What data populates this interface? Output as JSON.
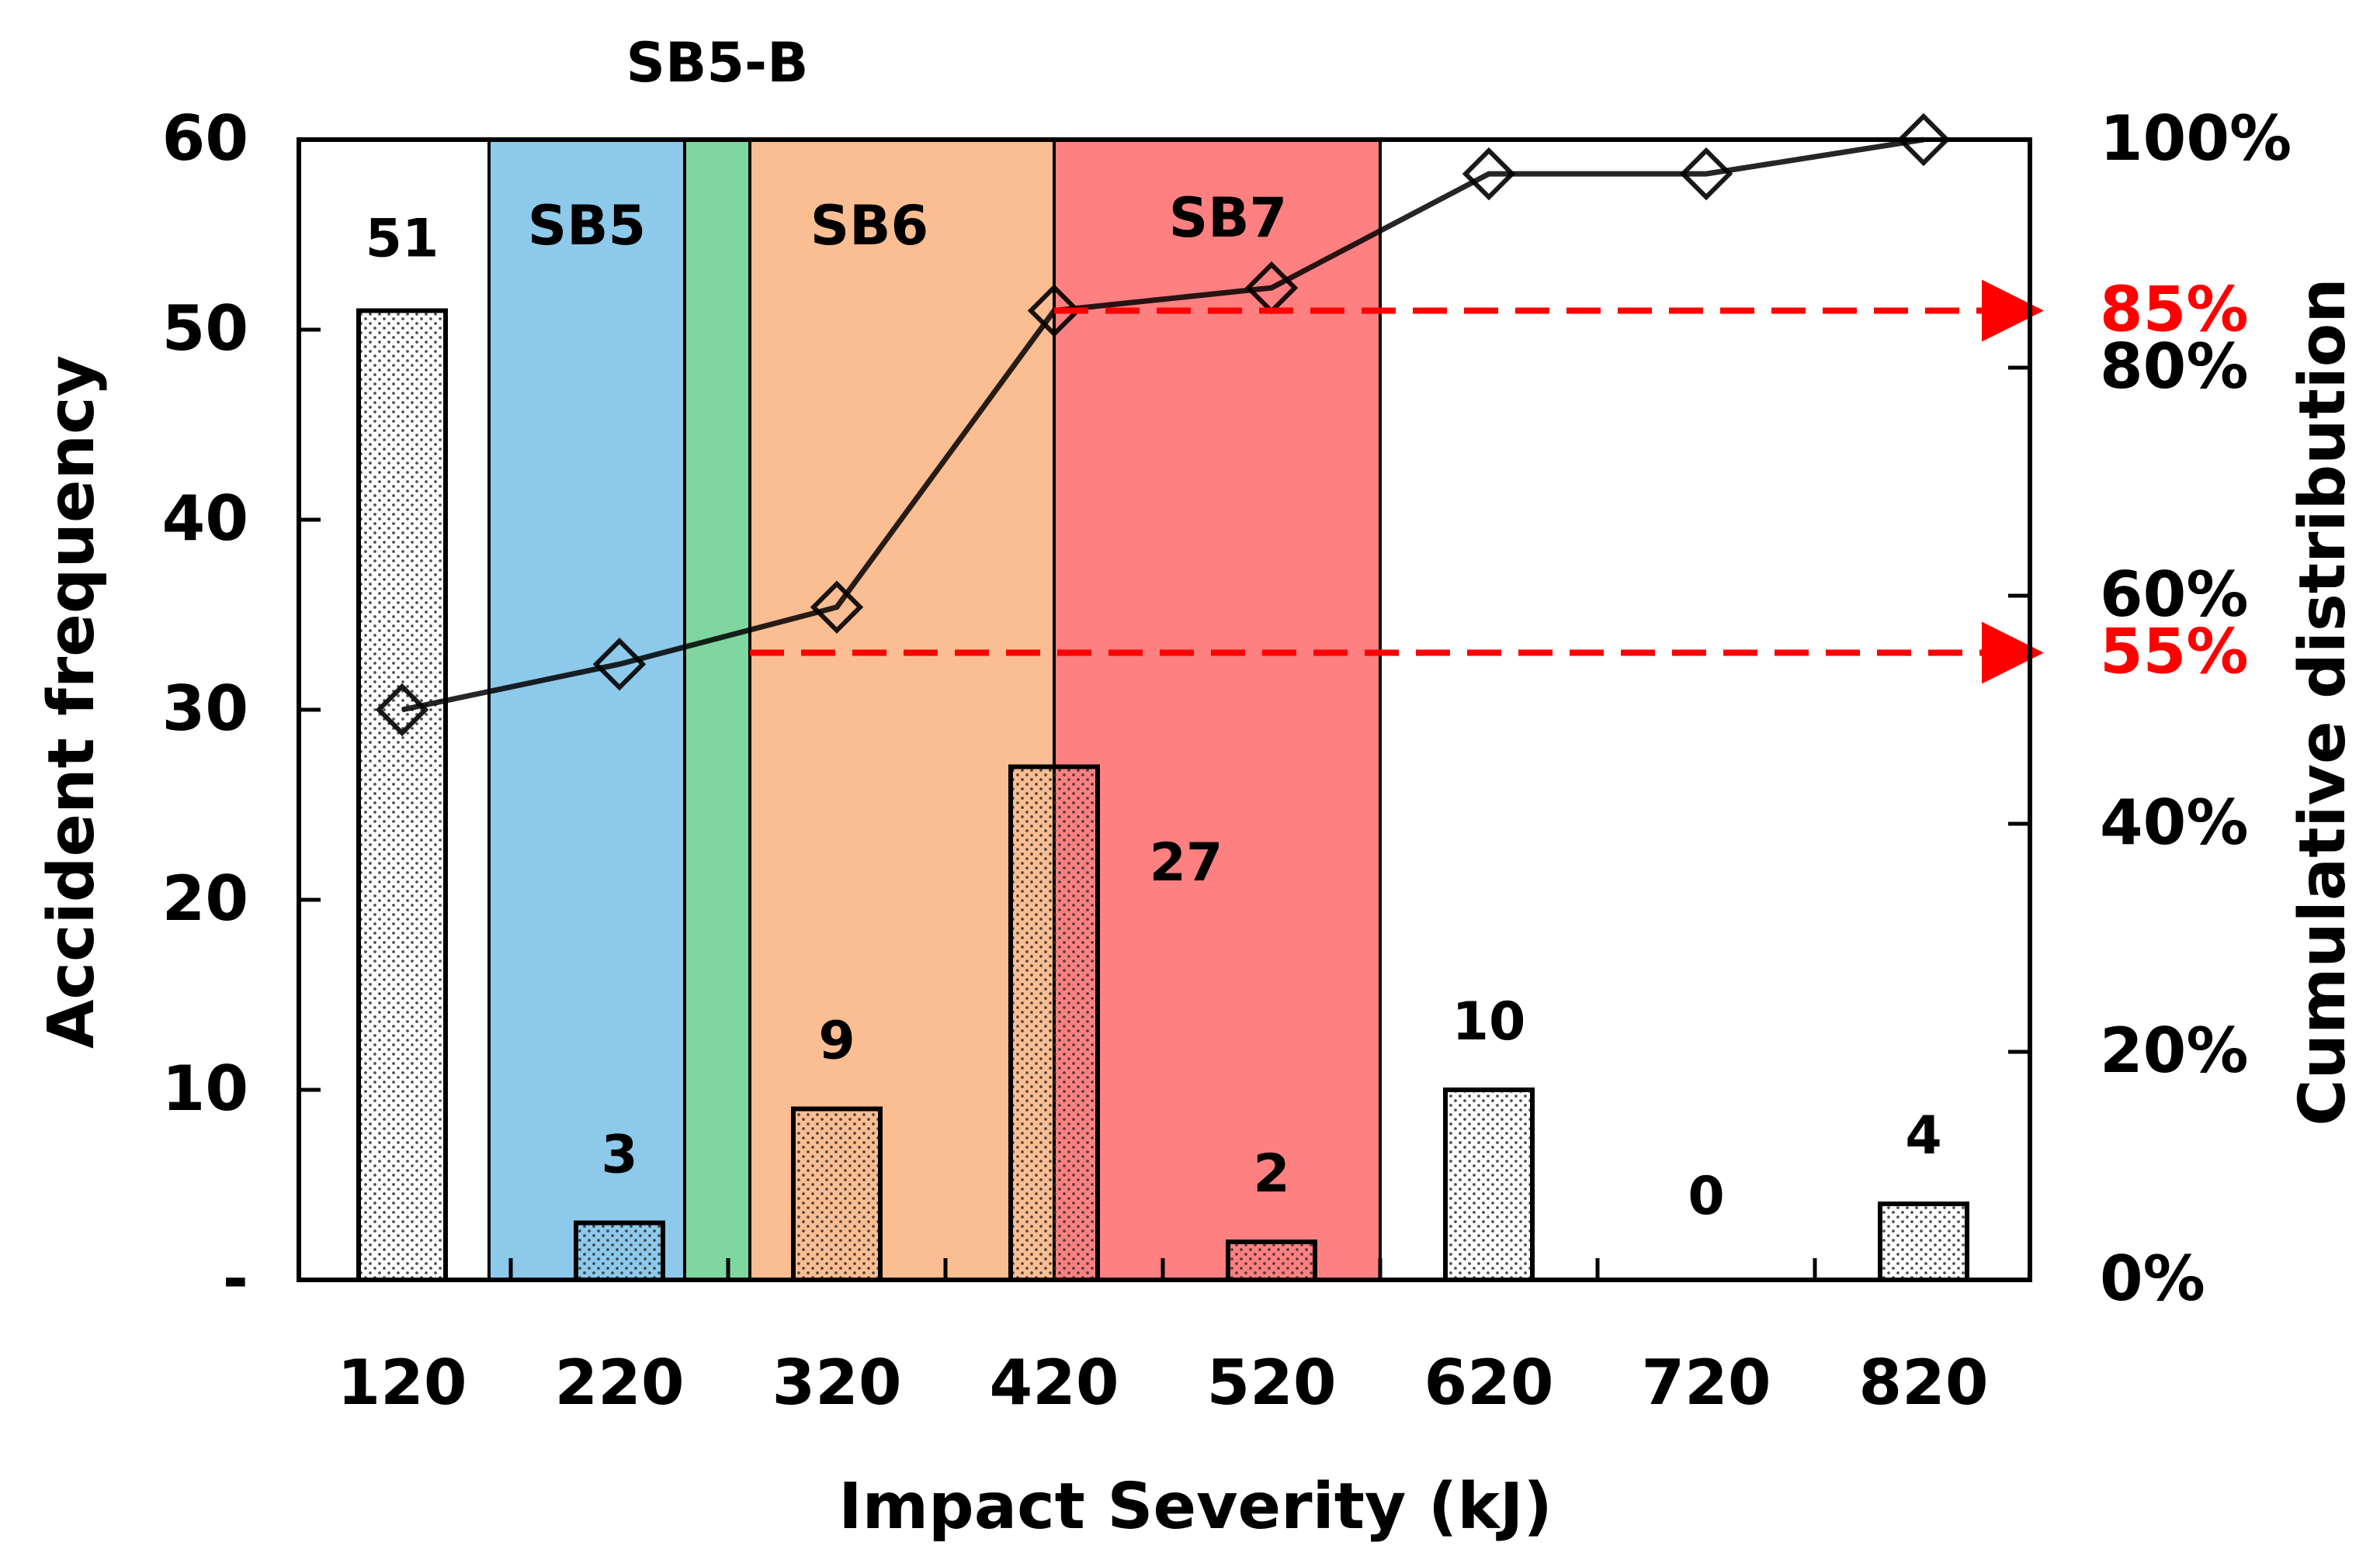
{
  "chart_data": {
    "type": "bar",
    "title": "",
    "xlabel": "Impact Severity (kJ)",
    "ylabel": "Accident frequency",
    "y2label": "Cumulative distribution",
    "categories": [
      "120",
      "220",
      "320",
      "420",
      "520",
      "620",
      "720",
      "820"
    ],
    "series": [
      {
        "name": "Accident frequency",
        "kind": "bar",
        "axis": "left",
        "values": [
          51,
          3,
          9,
          27,
          2,
          10,
          0,
          4
        ]
      },
      {
        "name": "Cumulative distribution",
        "kind": "line",
        "axis": "right",
        "values": [
          50,
          54,
          59,
          85,
          87,
          97,
          97,
          100
        ]
      }
    ],
    "bar_labels": [
      "51",
      "3",
      "9",
      "27",
      "2",
      "10",
      "0",
      "4"
    ],
    "ylim": [
      0,
      60
    ],
    "y_ticks": [
      {
        "value": 0,
        "label": "-"
      },
      {
        "value": 10,
        "label": "10"
      },
      {
        "value": 20,
        "label": "20"
      },
      {
        "value": 30,
        "label": "30"
      },
      {
        "value": 40,
        "label": "40"
      },
      {
        "value": 50,
        "label": "50"
      },
      {
        "value": 60,
        "label": "60"
      }
    ],
    "y2lim": [
      0,
      100
    ],
    "y2_ticks": [
      {
        "value": 0,
        "label": "0%"
      },
      {
        "value": 20,
        "label": "20%"
      },
      {
        "value": 40,
        "label": "40%"
      },
      {
        "value": 60,
        "label": "60%"
      },
      {
        "value": 80,
        "label": "80%"
      },
      {
        "value": 100,
        "label": "100%"
      }
    ],
    "zones": [
      {
        "name": "SB5",
        "from": 160,
        "to": 250,
        "color": "#8dc9eb"
      },
      {
        "name": "SB5-B",
        "from": 250,
        "to": 280,
        "color": "#7fd69f"
      },
      {
        "name": "SB6",
        "from": 280,
        "to": 420,
        "color": "#fbbd92"
      },
      {
        "name": "SB7",
        "from": 420,
        "to": 570,
        "color": "#ff8080"
      }
    ],
    "reference_lines": [
      {
        "label": "85%",
        "value": 85,
        "from": 420,
        "color": "#ff0000"
      },
      {
        "label": "55%",
        "value": 55,
        "from": 280,
        "color": "#ff0000"
      }
    ],
    "grid": false,
    "legend": "none"
  }
}
